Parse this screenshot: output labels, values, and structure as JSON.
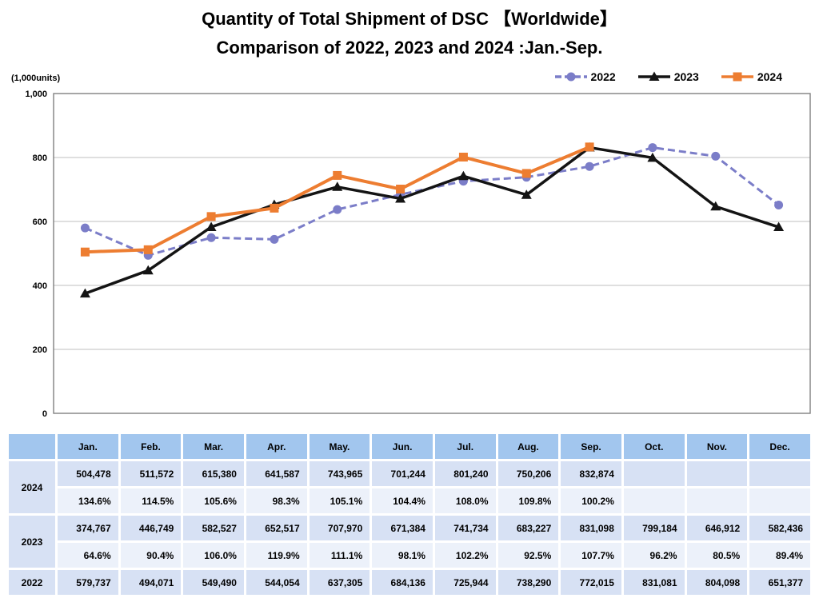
{
  "title": {
    "line1": "Quantity of Total Shipment of DSC 【Worldwide】",
    "line2": "Comparison of 2022, 2023 and 2024 :Jan.-Sep."
  },
  "axis_unit_label": "(1,000units)",
  "colors": {
    "series_2022": "#7B7DC8",
    "series_2023": "#141414",
    "series_2024": "#ED7D31",
    "gridline": "#BFBFBF",
    "plot_border": "#808080",
    "table_header_bg": "#A2C6EE",
    "table_value_bg": "#D7E1F4",
    "table_percent_bg": "#ECF1FA"
  },
  "chart_data": {
    "type": "line",
    "title": "Quantity of Total Shipment of DSC 【Worldwide】 Comparison of 2022, 2023 and 2024 :Jan.-Sep.",
    "ylabel": "(1,000units)",
    "xlabel": "",
    "categories": [
      "Jan.",
      "Feb.",
      "Mar.",
      "Apr.",
      "May.",
      "Jun.",
      "Jul.",
      "Aug.",
      "Sep.",
      "Oct.",
      "Nov.",
      "Dec."
    ],
    "ylim": [
      0,
      1000
    ],
    "yticks": [
      0,
      200,
      400,
      600,
      800,
      1000
    ],
    "ytick_labels": [
      "0",
      "200",
      "400",
      "600",
      "800",
      "1,000"
    ],
    "grid": true,
    "legend_position": "top-right",
    "series": [
      {
        "name": "2022",
        "color": "#7B7DC8",
        "style": "dashed",
        "marker": "circle",
        "values": [
          579.737,
          494.071,
          549.49,
          544.054,
          637.305,
          684.136,
          725.944,
          738.29,
          772.015,
          831.081,
          804.098,
          651.377
        ]
      },
      {
        "name": "2023",
        "color": "#141414",
        "style": "solid",
        "marker": "triangle",
        "values": [
          374.767,
          446.749,
          582.527,
          652.517,
          707.97,
          671.384,
          741.734,
          683.227,
          831.098,
          799.184,
          646.912,
          582.436
        ]
      },
      {
        "name": "2024",
        "color": "#ED7D31",
        "style": "solid",
        "marker": "square",
        "values": [
          504.478,
          511.572,
          615.38,
          641.587,
          743.965,
          701.244,
          801.24,
          750.206,
          832.874,
          null,
          null,
          null
        ]
      }
    ]
  },
  "table": {
    "columns": [
      "Jan.",
      "Feb.",
      "Mar.",
      "Apr.",
      "May.",
      "Jun.",
      "Jul.",
      "Aug.",
      "Sep.",
      "Oct.",
      "Nov.",
      "Dec."
    ],
    "row_groups": [
      {
        "year": "2024",
        "values": [
          "504,478",
          "511,572",
          "615,380",
          "641,587",
          "743,965",
          "701,244",
          "801,240",
          "750,206",
          "832,874",
          "",
          "",
          ""
        ],
        "percents": [
          "134.6%",
          "114.5%",
          "105.6%",
          "98.3%",
          "105.1%",
          "104.4%",
          "108.0%",
          "109.8%",
          "100.2%",
          "",
          "",
          ""
        ]
      },
      {
        "year": "2023",
        "values": [
          "374,767",
          "446,749",
          "582,527",
          "652,517",
          "707,970",
          "671,384",
          "741,734",
          "683,227",
          "831,098",
          "799,184",
          "646,912",
          "582,436"
        ],
        "percents": [
          "64.6%",
          "90.4%",
          "106.0%",
          "119.9%",
          "111.1%",
          "98.1%",
          "102.2%",
          "92.5%",
          "107.7%",
          "96.2%",
          "80.5%",
          "89.4%"
        ]
      },
      {
        "year": "2022",
        "values": [
          "579,737",
          "494,071",
          "549,490",
          "544,054",
          "637,305",
          "684,136",
          "725,944",
          "738,290",
          "772,015",
          "831,081",
          "804,098",
          "651,377"
        ],
        "percents": null
      }
    ]
  }
}
